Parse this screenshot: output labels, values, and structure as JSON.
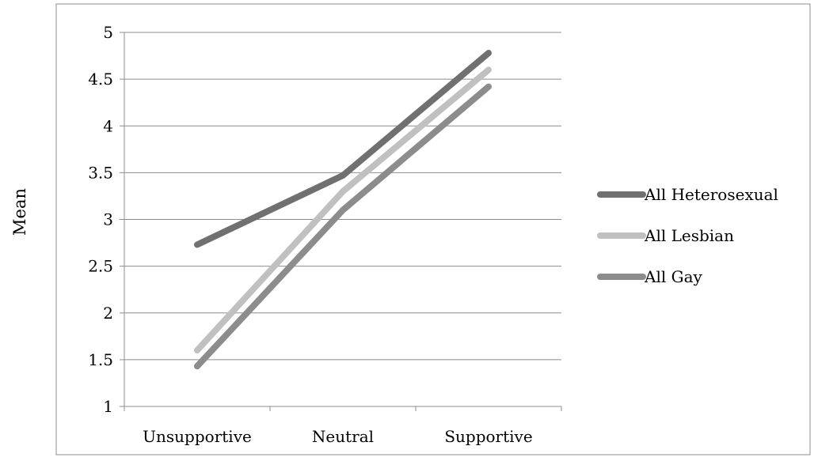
{
  "chart_data": {
    "type": "line",
    "title": "",
    "xlabel": "",
    "ylabel": "Mean",
    "categories": [
      "Unsupportive",
      "Neutral",
      "Supportive"
    ],
    "ylim": [
      1,
      5
    ],
    "yticks": [
      "1",
      "1.5",
      "2",
      "2.5",
      "3",
      "3.5",
      "4",
      "4.5",
      "5"
    ],
    "grid": "horizontal",
    "legend_position": "right",
    "series": [
      {
        "name": "All Heterosexual",
        "values": [
          2.73,
          3.47,
          4.78
        ],
        "color": "#707070"
      },
      {
        "name": "All Lesbian",
        "values": [
          1.6,
          3.3,
          4.6
        ],
        "color": "#c0c0c0"
      },
      {
        "name": "All Gay",
        "values": [
          1.43,
          3.1,
          4.42
        ],
        "color": "#8c8c8c"
      }
    ]
  }
}
